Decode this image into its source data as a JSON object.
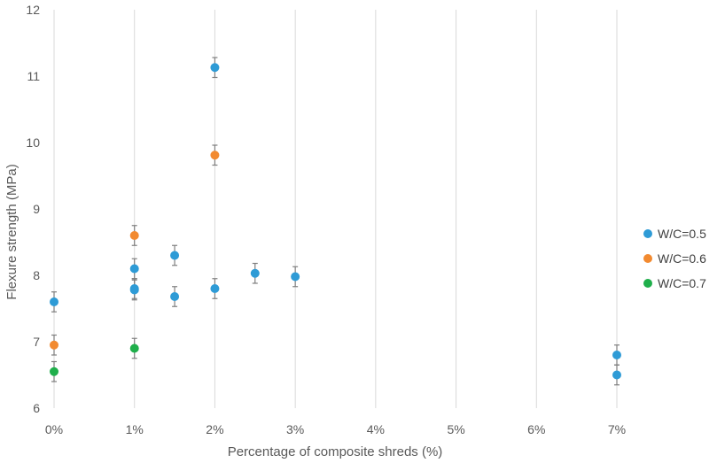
{
  "chart_data": {
    "type": "scatter",
    "xlabel": "Percentage of composite shreds (%)",
    "ylabel": "Flexure strength (MPa)",
    "xlim": [
      0,
      7
    ],
    "ylim": [
      6,
      12
    ],
    "x_ticks": [
      "0%",
      "1%",
      "2%",
      "3%",
      "4%",
      "5%",
      "6%",
      "7%"
    ],
    "y_ticks": [
      "6",
      "7",
      "8",
      "9",
      "10",
      "11",
      "12"
    ],
    "grid": "vertical",
    "legend_position": "right",
    "error_bars": true,
    "error_bar_half_width": 0.15,
    "series": [
      {
        "name": "W/C=0.5",
        "color": "#2E9BD6",
        "points": [
          {
            "x": 0,
            "y": 7.6
          },
          {
            "x": 1,
            "y": 8.1
          },
          {
            "x": 1,
            "y": 7.8
          },
          {
            "x": 1,
            "y": 7.78
          },
          {
            "x": 1.5,
            "y": 8.3
          },
          {
            "x": 1.5,
            "y": 7.68
          },
          {
            "x": 2,
            "y": 11.13
          },
          {
            "x": 2,
            "y": 7.8
          },
          {
            "x": 2.5,
            "y": 8.03
          },
          {
            "x": 3,
            "y": 7.98
          },
          {
            "x": 7,
            "y": 6.8
          },
          {
            "x": 7,
            "y": 6.5
          }
        ]
      },
      {
        "name": "W/C=0.6",
        "color": "#F28A30",
        "points": [
          {
            "x": 0,
            "y": 6.95
          },
          {
            "x": 1,
            "y": 8.6
          },
          {
            "x": 2,
            "y": 9.81
          }
        ]
      },
      {
        "name": "W/C=0.7",
        "color": "#1FAF4B",
        "points": [
          {
            "x": 0,
            "y": 6.55
          },
          {
            "x": 1,
            "y": 6.9
          }
        ]
      }
    ]
  }
}
